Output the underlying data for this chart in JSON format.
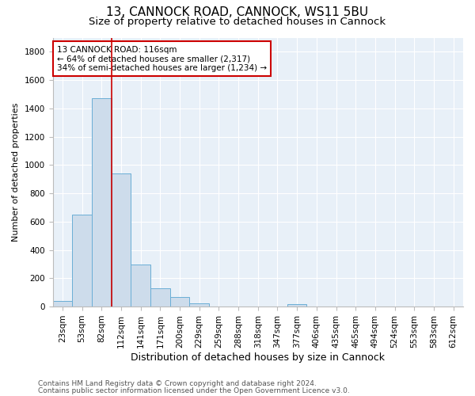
{
  "title1": "13, CANNOCK ROAD, CANNOCK, WS11 5BU",
  "title2": "Size of property relative to detached houses in Cannock",
  "xlabel": "Distribution of detached houses by size in Cannock",
  "ylabel": "Number of detached properties",
  "categories": [
    "23sqm",
    "53sqm",
    "82sqm",
    "112sqm",
    "141sqm",
    "171sqm",
    "200sqm",
    "229sqm",
    "259sqm",
    "288sqm",
    "318sqm",
    "347sqm",
    "377sqm",
    "406sqm",
    "435sqm",
    "465sqm",
    "494sqm",
    "524sqm",
    "553sqm",
    "583sqm",
    "612sqm"
  ],
  "values": [
    40,
    650,
    1470,
    940,
    295,
    130,
    65,
    25,
    0,
    0,
    0,
    0,
    15,
    0,
    0,
    0,
    0,
    0,
    0,
    0,
    0
  ],
  "bar_color": "#cddceb",
  "bar_edge_color": "#6aaed6",
  "property_line_index": 3,
  "property_line_color": "#cc0000",
  "annotation_text": "13 CANNOCK ROAD: 116sqm\n← 64% of detached houses are smaller (2,317)\n34% of semi-detached houses are larger (1,234) →",
  "annotation_box_edge_color": "#cc0000",
  "annotation_box_facecolor": "white",
  "ylim": [
    0,
    1900
  ],
  "yticks": [
    0,
    200,
    400,
    600,
    800,
    1000,
    1200,
    1400,
    1600,
    1800
  ],
  "footer1": "Contains HM Land Registry data © Crown copyright and database right 2024.",
  "footer2": "Contains public sector information licensed under the Open Government Licence v3.0.",
  "bg_color": "#e8f0f8",
  "grid_color": "white",
  "title1_fontsize": 11,
  "title2_fontsize": 9.5,
  "xlabel_fontsize": 9,
  "ylabel_fontsize": 8,
  "tick_fontsize": 7.5,
  "annot_fontsize": 7.5,
  "footer_fontsize": 6.5
}
